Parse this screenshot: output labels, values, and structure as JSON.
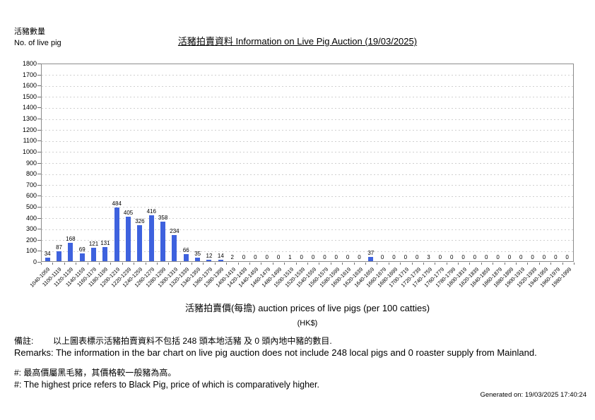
{
  "header": {
    "y_axis_caption_zh": "活豬數量",
    "y_axis_caption_en": "No. of live pig",
    "title": "活豬拍賣資料 Information on Live Pig Auction (19/03/2025)"
  },
  "footer": {
    "remark_label_zh": "備註:",
    "remark_text_zh": "以上圖表標示活豬拍賣資料不包括 248 頭本地活豬 及 0 頭內地中豬的數目.",
    "remark_en": "Remarks: The information in the bar chart on live pig auction does not include 248 local pigs and 0 roaster supply from Mainland.",
    "note_zh": "#: 最高價屬黑毛豬，其價格較一般豬為高。",
    "note_en": "#: The highest price refers to Black Pig, price of which is comparatively higher.",
    "generated": "Generated on: 19/03/2025 17:40:24"
  },
  "chart_data": {
    "type": "bar",
    "title": "活豬拍賣資料 Information on Live Pig Auction (19/03/2025)",
    "xlabel": "活豬拍賣價(每擔) auction prices of live pigs (per 100 catties)",
    "xlabel_sub": "(HK$)",
    "ylabel": "活豬數量 No. of live pig",
    "ylim": [
      0,
      1800
    ],
    "ytick_step": 100,
    "grid": "horizontal-dashed",
    "legend": "none",
    "bar_color": "#3E62DE",
    "categories": [
      "1040-1059",
      "1100-1119",
      "1120-1139",
      "1140-1159",
      "1160-1179",
      "1180-1199",
      "1200-1219",
      "1220-1239",
      "1240-1259",
      "1260-1279",
      "1280-1299",
      "1300-1319",
      "1320-1339",
      "1340-1359",
      "1360-1379",
      "1380-1399",
      "1400-1419",
      "1420-1439",
      "1440-1459",
      "1460-1479",
      "1480-1499",
      "1500-1519",
      "1520-1539",
      "1540-1559",
      "1560-1579",
      "1580-1599",
      "1600-1619",
      "1620-1639",
      "1640-1659",
      "1660-1679",
      "1680-1699",
      "1700-1719",
      "1720-1739",
      "1740-1759",
      "1760-1779",
      "1780-1799",
      "1800-1819",
      "1820-1839",
      "1840-1859",
      "1860-1879",
      "1880-1899",
      "1900-1919",
      "1920-1939",
      "1940-1959",
      "1960-1979",
      "1980-1999"
    ],
    "values": [
      34,
      87,
      168,
      69,
      121,
      131,
      484,
      405,
      326,
      416,
      358,
      234,
      66,
      35,
      12,
      14,
      2,
      0,
      0,
      0,
      0,
      1,
      0,
      0,
      0,
      0,
      0,
      0,
      37,
      0,
      0,
      0,
      0,
      3,
      0,
      0,
      0,
      0,
      0,
      0,
      0,
      0,
      0,
      0,
      0,
      0
    ]
  }
}
